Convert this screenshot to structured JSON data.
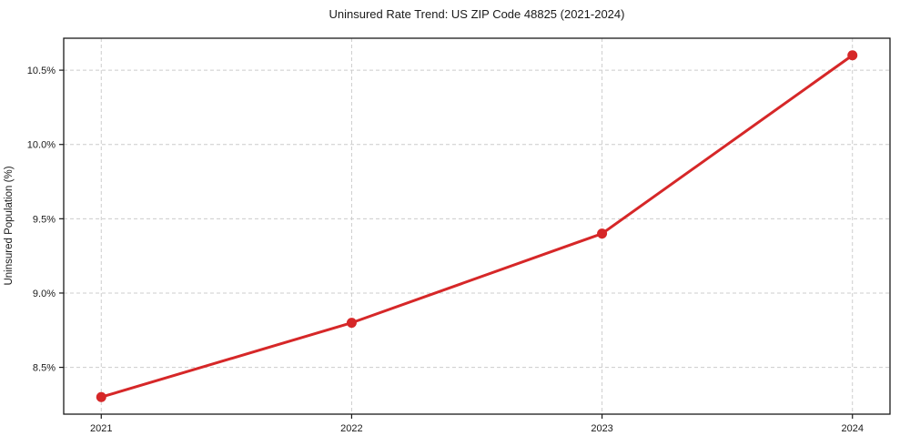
{
  "chart_data": {
    "type": "line",
    "title": "Uninsured Rate Trend: US ZIP Code 48825 (2021-2024)",
    "xlabel": "",
    "ylabel": "Uninsured Population (%)",
    "x": [
      2021,
      2022,
      2023,
      2024
    ],
    "y": [
      8.3,
      8.8,
      9.4,
      10.6
    ],
    "series": [
      {
        "name": "Uninsured Rate",
        "x": [
          2021,
          2022,
          2023,
          2024
        ],
        "values": [
          8.3,
          8.8,
          9.4,
          10.6
        ]
      }
    ],
    "x_tick_labels": [
      "2021",
      "2022",
      "2023",
      "2024"
    ],
    "x_tick_values": [
      2021,
      2022,
      2023,
      2024
    ],
    "y_tick_labels": [
      "8.5%",
      "9.0%",
      "9.5%",
      "10.0%",
      "10.5%"
    ],
    "y_tick_values": [
      8.5,
      9.0,
      9.5,
      10.0,
      10.5
    ],
    "xlim": [
      2020.85,
      2024.15
    ],
    "ylim": [
      8.185,
      10.715
    ],
    "grid": true,
    "grid_style": "dashed",
    "legend": false,
    "line_color": "#d62728",
    "marker": "circle",
    "background_color": "#ffffff",
    "grid_color": "#cccccc",
    "axis_color": "#1a1a1a"
  }
}
